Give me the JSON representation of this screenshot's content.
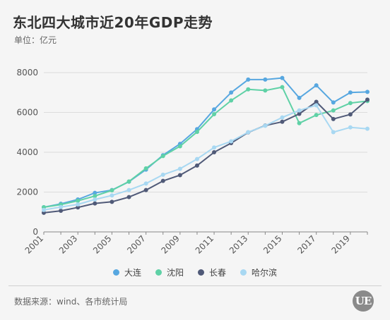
{
  "header": {
    "title": "东北四大城市近20年GDP走势",
    "unit": "单位：亿元"
  },
  "footer": {
    "source": "数据来源：wind、各市统计局",
    "logo_text": "UE"
  },
  "chart_data": {
    "type": "line",
    "title": "东北四大城市近20年GDP走势",
    "xlabel": "",
    "ylabel": "单位：亿元",
    "ylim": [
      0,
      8000
    ],
    "yticks": [
      0,
      2000,
      4000,
      6000,
      8000
    ],
    "xticks": [
      "2001",
      "2003",
      "2005",
      "2007",
      "2009",
      "2011",
      "2013",
      "2015",
      "2017",
      "2019"
    ],
    "grid": true,
    "legend_position": "bottom",
    "x": [
      2001,
      2002,
      2003,
      2004,
      2005,
      2006,
      2007,
      2008,
      2009,
      2010,
      2011,
      2012,
      2013,
      2014,
      2015,
      2016,
      2017,
      2018,
      2019,
      2020
    ],
    "series": [
      {
        "name": "大连",
        "color": "#57a7e0",
        "values": [
          1240,
          1410,
          1630,
          1960,
          2100,
          2520,
          3130,
          3850,
          4420,
          5160,
          6150,
          7000,
          7650,
          7650,
          7730,
          6730,
          7360,
          6500,
          7000,
          7030
        ]
      },
      {
        "name": "沈阳",
        "color": "#5fd1a6",
        "values": [
          1240,
          1370,
          1560,
          1800,
          2090,
          2530,
          3190,
          3810,
          4300,
          5020,
          5910,
          6600,
          7160,
          7100,
          7270,
          5460,
          5870,
          6100,
          6470,
          6570
        ]
      },
      {
        "name": "长春",
        "color": "#505a78",
        "values": [
          960,
          1060,
          1230,
          1430,
          1510,
          1750,
          2100,
          2560,
          2850,
          3330,
          4000,
          4460,
          5000,
          5340,
          5530,
          5930,
          6530,
          5670,
          5900,
          6640
        ]
      },
      {
        "name": "哈尔滨",
        "color": "#a8d8f2",
        "values": [
          1100,
          1250,
          1380,
          1630,
          1830,
          2100,
          2430,
          2870,
          3170,
          3660,
          4240,
          4550,
          5010,
          5330,
          5750,
          6100,
          6360,
          5010,
          5250,
          5180
        ]
      }
    ]
  }
}
